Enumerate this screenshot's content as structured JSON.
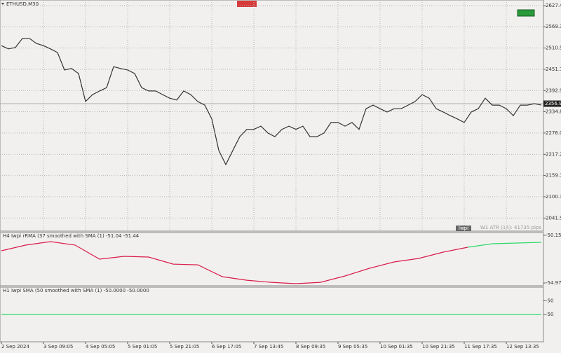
{
  "chart_data": [
    {
      "type": "line",
      "title": "ETHUSD,M30",
      "annotation": "W1 ATR (14): 41735 pips",
      "indicator_label": "Iwpi",
      "last_price": 2356.95,
      "color": "#333333",
      "grid": true,
      "ylim": [
        2005.4,
        2642.9
      ],
      "yticks": [
        2627.41,
        2569.31,
        2510.51,
        2451.71,
        2392.91,
        2334.81,
        2276.01,
        2217.21,
        2159.11,
        2100.31,
        2041.51
      ],
      "categories": [
        "2 Sep 2024",
        null,
        null,
        null,
        null,
        null,
        "3 Sep 09:05",
        null,
        null,
        null,
        null,
        null,
        "4 Sep 05:05",
        null,
        null,
        null,
        null,
        null,
        "5 Sep 01:05",
        null,
        null,
        null,
        null,
        null,
        "5 Sep 21:05",
        null,
        null,
        null,
        null,
        null,
        "6 Sep 17:05",
        null,
        null,
        null,
        null,
        null,
        "7 Sep 13:45",
        null,
        null,
        null,
        null,
        null,
        "8 Sep 09:35",
        null,
        null,
        null,
        null,
        null,
        "9 Sep 05:35",
        null,
        null,
        null,
        null,
        null,
        "10 Sep 01:35",
        null,
        null,
        null,
        null,
        null,
        "10 Sep 21:35",
        null,
        null,
        null,
        null,
        null,
        "11 Sep 17:35",
        null,
        null,
        null,
        null,
        null,
        "12 Sep 13:35",
        null,
        null,
        null,
        null,
        null
      ],
      "values": [
        2517,
        2508,
        2512,
        2537,
        2537,
        2523,
        2517,
        2508,
        2498,
        2450,
        2454,
        2440,
        2363,
        2382,
        2392,
        2401,
        2459,
        2454,
        2450,
        2440,
        2401,
        2392,
        2392,
        2382,
        2372,
        2367,
        2392,
        2382,
        2363,
        2353,
        2315,
        2228,
        2189,
        2228,
        2266,
        2286,
        2286,
        2295,
        2276,
        2266,
        2286,
        2295,
        2286,
        2295,
        2266,
        2266,
        2276,
        2305,
        2305,
        2295,
        2305,
        2286,
        2343,
        2353,
        2343,
        2334,
        2343,
        2343,
        2353,
        2363,
        2382,
        2372,
        2343,
        2334,
        2324,
        2315,
        2305,
        2334,
        2343,
        2372,
        2353,
        2353,
        2343,
        2324,
        2353,
        2353,
        2357,
        2353
      ]
    },
    {
      "type": "line",
      "title": "H4 Iwpi rRMA (37 smoothed with  SMA (1) -51.04 -51.44",
      "ylim": [
        -55.25,
        -49.87
      ],
      "yticks": [
        -50.15,
        -54.97
      ],
      "categories": [
        null,
        null,
        null,
        null,
        null,
        null,
        null,
        null,
        null,
        null,
        null,
        null,
        null,
        null,
        null,
        null,
        null,
        null,
        null,
        null,
        null,
        null,
        null
      ],
      "series": [
        {
          "color": "#d81b4a",
          "values": [
            -51.71,
            -51.14,
            -50.79,
            -51.14,
            -52.56,
            -52.28,
            -52.35,
            -53.06,
            -53.13,
            -54.33,
            -54.69,
            -54.9,
            -55.04,
            -54.9,
            -54.26,
            -53.48,
            -52.84,
            -52.49,
            -51.85,
            -51.36,
            null,
            null,
            null
          ]
        },
        {
          "color": "#2ed86a",
          "values": [
            null,
            null,
            null,
            null,
            null,
            null,
            null,
            null,
            null,
            null,
            null,
            null,
            null,
            null,
            null,
            null,
            null,
            null,
            null,
            -51.36,
            -51.0,
            -50.93,
            -50.86
          ]
        }
      ]
    },
    {
      "type": "line",
      "title": "H1 Iwpi  SMA (50 smoothed with  SMA (1) -50.0000 -50.0000",
      "ylim": [
        -50.0001,
        -49.9999
      ],
      "yticks": [
        {
          "value": -49.99995,
          "label": "-50"
        },
        {
          "value": -50,
          "label": "-50"
        }
      ],
      "categories": [
        null,
        null,
        null,
        null,
        null,
        null,
        null,
        null,
        null,
        null,
        null,
        null,
        null,
        null,
        null,
        null,
        null,
        null,
        null,
        null,
        null,
        null,
        null
      ],
      "series": [
        {
          "color": "#2ed86a",
          "values": [
            -50,
            -50,
            -50,
            -50,
            -50,
            -50,
            -50,
            -50,
            -50,
            -50,
            -50,
            -50,
            -50,
            -50,
            -50,
            -50,
            -50,
            -50,
            -50,
            -50,
            -50,
            -50,
            -50
          ]
        }
      ]
    }
  ]
}
